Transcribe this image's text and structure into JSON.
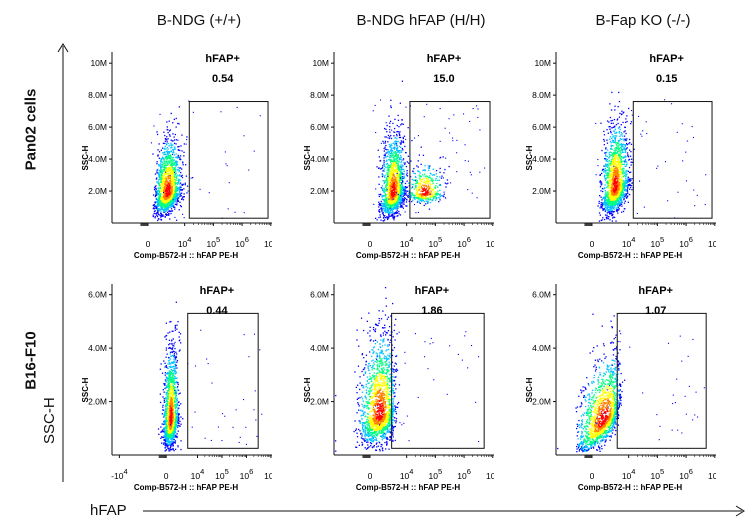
{
  "column_titles": [
    "B-NDG (+/+)",
    "B-NDG hFAP (H/H)",
    "B-Fap KO (-/-)"
  ],
  "row_labels": [
    "Pan02 cells",
    "B16-F10"
  ],
  "y_axis_side_label": "SSC-H",
  "x_axis_side_label": "hFAP",
  "colors": {
    "gate": "#111111",
    "axis": "#111111",
    "density_scale": [
      "#0000ff",
      "#00c0ff",
      "#00ff80",
      "#ffff00",
      "#ff8000",
      "#ff0000"
    ]
  },
  "chart_data": [
    {
      "type": "scatter",
      "subtype": "flow-cytometry-density",
      "row": "Pan02 cells",
      "column": "B-NDG (+/+)",
      "gate_label": "hFAP+",
      "gate_value": "0.54",
      "xlabel": "Comp-B572-H :: hFAP PE-H",
      "ylabel": "SSC-H",
      "x_scale": "biexponential",
      "x_ticks": [
        "0",
        "10^4",
        "10^5",
        "10^6",
        "10^7"
      ],
      "y_ticks": [
        "2.0M",
        "4.0M",
        "6.0M",
        "8.0M",
        "10M"
      ],
      "ylim": [
        0,
        10.7
      ],
      "gate_x": [
        14500,
        8000000
      ],
      "gate_y": [
        0.3,
        7.6
      ],
      "populations": [
        {
          "x_center": 2500,
          "y_center": 1.9,
          "x_spread": 0.22,
          "y_spread": 1.0,
          "n": 1700,
          "tilt": 0.08
        }
      ]
    },
    {
      "type": "scatter",
      "subtype": "flow-cytometry-density",
      "row": "Pan02 cells",
      "column": "B-NDG hFAP (H/H)",
      "gate_label": "hFAP+",
      "gate_value": "15.0",
      "xlabel": "Comp-B572-H :: hFAP PE-H",
      "ylabel": "SSC-H",
      "x_scale": "biexponential",
      "x_ticks": [
        "0",
        "10^4",
        "10^5",
        "10^6",
        "10^7"
      ],
      "y_ticks": [
        "2.0M",
        "4.0M",
        "6.0M",
        "8.0M",
        "10M"
      ],
      "ylim": [
        0,
        10.7
      ],
      "gate_x": [
        13000,
        8000000
      ],
      "gate_y": [
        0.3,
        7.6
      ],
      "populations": [
        {
          "x_center": 3300,
          "y_center": 1.9,
          "x_spread": 0.2,
          "y_spread": 1.1,
          "n": 1700,
          "tilt": 0.08
        },
        {
          "x_center": 42000,
          "y_center": 1.9,
          "x_spread": 0.32,
          "y_spread": 0.55,
          "n": 450,
          "tilt": 0.0
        }
      ]
    },
    {
      "type": "scatter",
      "subtype": "flow-cytometry-density",
      "row": "Pan02 cells",
      "column": "B-Fap KO (-/-)",
      "gate_label": "hFAP+",
      "gate_value": "0.15",
      "xlabel": "Comp-B572-H :: hFAP PE-H",
      "ylabel": "SSC-H",
      "x_scale": "biexponential",
      "x_ticks": [
        "0",
        "10^4",
        "10^5",
        "10^6",
        "10^7"
      ],
      "y_ticks": [
        "2.0M",
        "4.0M",
        "6.0M",
        "8.0M",
        "10M"
      ],
      "ylim": [
        0,
        10.7
      ],
      "gate_x": [
        14500,
        8000000
      ],
      "gate_y": [
        0.3,
        7.6
      ],
      "populations": [
        {
          "x_center": 3300,
          "y_center": 2.2,
          "x_spread": 0.22,
          "y_spread": 1.2,
          "n": 1800,
          "tilt": 0.1
        }
      ]
    },
    {
      "type": "scatter",
      "subtype": "flow-cytometry-density",
      "row": "B16-F10",
      "column": "B-NDG (+/+)",
      "gate_label": "hFAP+",
      "gate_value": "0.44",
      "xlabel": "Comp-B572-H :: hFAP PE-H",
      "ylabel": "SSC-H",
      "x_scale": "biexponential",
      "x_ticks": [
        "-10^4",
        "0",
        "10^4",
        "10^5",
        "10^6",
        "10^7"
      ],
      "y_ticks": [
        "2.0M",
        "4.0M",
        "6.0M"
      ],
      "ylim": [
        0,
        6.4
      ],
      "gate_x": [
        4000,
        3000000
      ],
      "gate_y": [
        0.25,
        5.3
      ],
      "populations": [
        {
          "x_center": 600,
          "y_center": 1.3,
          "x_spread": 0.14,
          "y_spread": 0.8,
          "n": 1600,
          "tilt": 0.04
        }
      ]
    },
    {
      "type": "scatter",
      "subtype": "flow-cytometry-density",
      "row": "B16-F10",
      "column": "B-NDG hFAP (H/H)",
      "gate_label": "hFAP+",
      "gate_value": "1.86",
      "xlabel": "Comp-B572-H :: hFAP PE-H",
      "ylabel": "SSC-H",
      "x_scale": "biexponential",
      "x_ticks": [
        "0",
        "10^4",
        "10^5",
        "10^6",
        "10^7"
      ],
      "y_ticks": [
        "2.0M",
        "4.0M",
        "6.0M"
      ],
      "ylim": [
        0,
        6.4
      ],
      "gate_x": [
        3000,
        5000000
      ],
      "gate_y": [
        0.25,
        5.3
      ],
      "populations": [
        {
          "x_center": 1100,
          "y_center": 1.5,
          "x_spread": 0.18,
          "y_spread": 0.9,
          "n": 1800,
          "tilt": 0.05
        }
      ]
    },
    {
      "type": "scatter",
      "subtype": "flow-cytometry-density",
      "row": "B16-F10",
      "column": "B-Fap KO (-/-)",
      "gate_label": "hFAP+",
      "gate_value": "1.07",
      "xlabel": "Comp-B572-H :: hFAP PE-H",
      "ylabel": "SSC-H",
      "x_scale": "biexponential",
      "x_ticks": [
        "0",
        "10^4",
        "10^5",
        "10^6",
        "10^7"
      ],
      "y_ticks": [
        "2.0M",
        "4.0M",
        "6.0M"
      ],
      "ylim": [
        0,
        6.4
      ],
      "gate_x": [
        4000,
        5000000
      ],
      "gate_y": [
        0.25,
        5.3
      ],
      "populations": [
        {
          "x_center": 1300,
          "y_center": 1.3,
          "x_spread": 0.2,
          "y_spread": 0.7,
          "n": 1600,
          "tilt": 0.15
        }
      ]
    }
  ]
}
